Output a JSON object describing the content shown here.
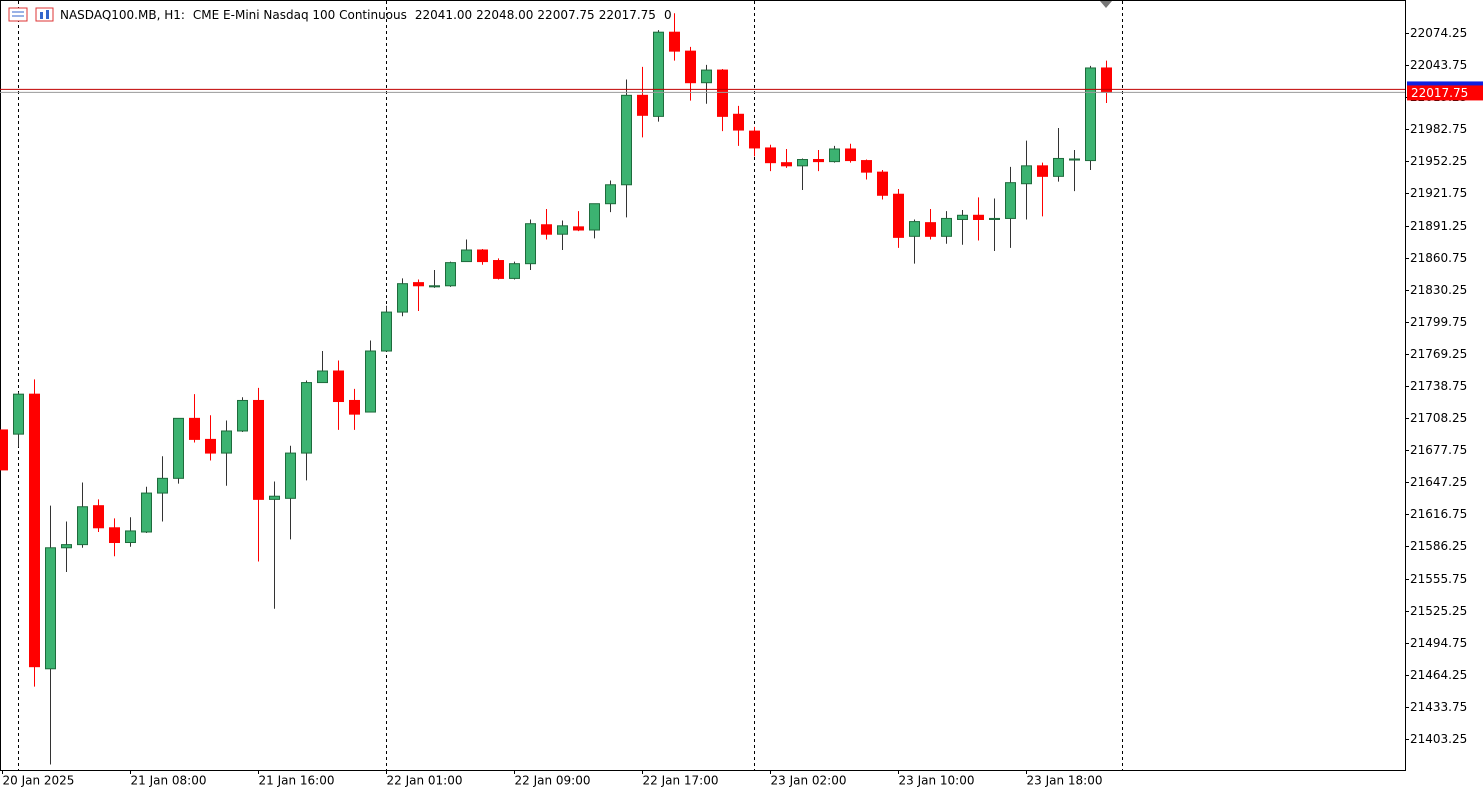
{
  "header": {
    "symbol": "NASDAQ100.MB, H1:",
    "description": "CME E-Mini Nasdaq 100 Continuous",
    "ohlc": [
      "22041.00",
      "22048.00",
      "22007.75",
      "22017.75"
    ],
    "volume": "0"
  },
  "chart_data": {
    "type": "candlestick",
    "categories": [
      "20 Jan 2025",
      null,
      null,
      null,
      null,
      null,
      null,
      null,
      "21 Jan 08:00",
      null,
      null,
      null,
      null,
      null,
      null,
      null,
      "21 Jan 16:00",
      null,
      null,
      null,
      null,
      null,
      null,
      null,
      "22 Jan 01:00",
      null,
      null,
      null,
      null,
      null,
      null,
      null,
      "22 Jan 09:00",
      null,
      null,
      null,
      null,
      null,
      null,
      null,
      "22 Jan 17:00",
      null,
      null,
      null,
      null,
      null,
      null,
      null,
      "23 Jan 02:00",
      null,
      null,
      null,
      null,
      null,
      null,
      null,
      "23 Jan 10:00",
      null,
      null,
      null,
      null,
      null,
      null,
      null,
      "23 Jan 18:00",
      null,
      null,
      null,
      null,
      null
    ],
    "open": [
      21697,
      21693,
      21731,
      21470,
      21585,
      21588,
      21625,
      21604,
      21590,
      21600,
      21637,
      21651,
      21708,
      21688,
      21675,
      21696,
      21725,
      21631,
      21632,
      21675,
      21742,
      21753,
      21725,
      21714,
      21772,
      21809,
      21837,
      21833,
      21834,
      21857,
      21868,
      21858,
      21841,
      21855,
      21892,
      21883,
      21890,
      21887,
      21912,
      21930,
      22015,
      21995,
      22075,
      22057,
      22027,
      22039,
      21997,
      21981,
      21965,
      21951,
      21948,
      21954,
      21952,
      21964,
      21953,
      21942,
      21921,
      21881,
      21894,
      21881,
      21897,
      21901,
      21897,
      21898,
      21931,
      21948,
      21938,
      21953.5,
      21953,
      22041
    ],
    "high": [
      21697,
      21733,
      21745,
      21625,
      21610,
      21647,
      21631,
      21613,
      21614,
      21643,
      21672,
      21708,
      21731,
      21711,
      21706,
      21728,
      21737,
      21648,
      21682,
      21744,
      21772,
      21763,
      21736,
      21782,
      21815,
      21841,
      21840,
      21849,
      21857,
      21878,
      21869,
      21860,
      21857,
      21897,
      21907,
      21896,
      21905,
      21912,
      21934,
      22030,
      22042,
      22077,
      22093,
      22061,
      22044,
      22040,
      22005,
      21985,
      21968,
      21964,
      21955,
      21963,
      21967,
      21969,
      21954,
      21944,
      21926,
      21897,
      21907,
      21905,
      21906,
      21918,
      21917,
      21947,
      21972,
      21951,
      21984,
      21963,
      22043,
      22048
    ],
    "low": [
      21659,
      21681,
      21453,
      21379,
      21562,
      21585,
      21600,
      21577,
      21586,
      21599,
      21610,
      21646,
      21685,
      21668,
      21644,
      21695,
      21572,
      21527,
      21593,
      21649,
      21743,
      21697,
      21697,
      21714,
      21772,
      21805,
      21810,
      21832,
      21833,
      21857,
      21854,
      21840,
      21840,
      21849,
      21878,
      21868,
      21886,
      21879,
      21904,
      21899,
      21975,
      21990,
      22048,
      22010,
      22007,
      21981,
      21967,
      21957,
      21943,
      21946,
      21925,
      21943,
      21951,
      21951,
      21935,
      21916,
      21870,
      21855,
      21878,
      21874,
      21873,
      21877,
      21867,
      21870,
      21897,
      21900,
      21933,
      21924,
      21944,
      22007.75
    ],
    "close": [
      21659,
      21731,
      21472,
      21585,
      21588,
      21624,
      21604,
      21590,
      21601,
      21637,
      21651,
      21708,
      21688,
      21675,
      21696,
      21725,
      21631,
      21634,
      21675,
      21742,
      21753,
      21724,
      21712,
      21772,
      21809,
      21836,
      21834,
      21834,
      21856,
      21868,
      21857,
      21841,
      21855,
      21893,
      21883,
      21891,
      21887,
      21912,
      21930,
      22015,
      21996,
      22075,
      22057,
      22027,
      22039,
      21995,
      21982,
      21965,
      21951,
      21948,
      21954,
      21952,
      21964,
      21953,
      21942,
      21920,
      21880,
      21895,
      21881,
      21898,
      21901,
      21897,
      21898,
      21932,
      21948,
      21938,
      21955,
      21954.5,
      22041,
      22017.75
    ],
    "up_color": "#3cb371",
    "up_border": "#1e6b3c",
    "down_color": "#ff0000",
    "last_price": {
      "value": 22017.75,
      "label": "22017.75"
    },
    "ylim": [
      21373.8,
      22105.6
    ],
    "yticks": [
      21403.25,
      21433.75,
      21464.25,
      21494.75,
      21525.25,
      21555.75,
      21586.25,
      21616.75,
      21647.25,
      21677.75,
      21708.25,
      21738.75,
      21769.25,
      21799.75,
      21830.25,
      21860.75,
      21891.25,
      21921.75,
      21952.25,
      21982.75,
      22013.25,
      22043.75,
      22074.25
    ]
  }
}
